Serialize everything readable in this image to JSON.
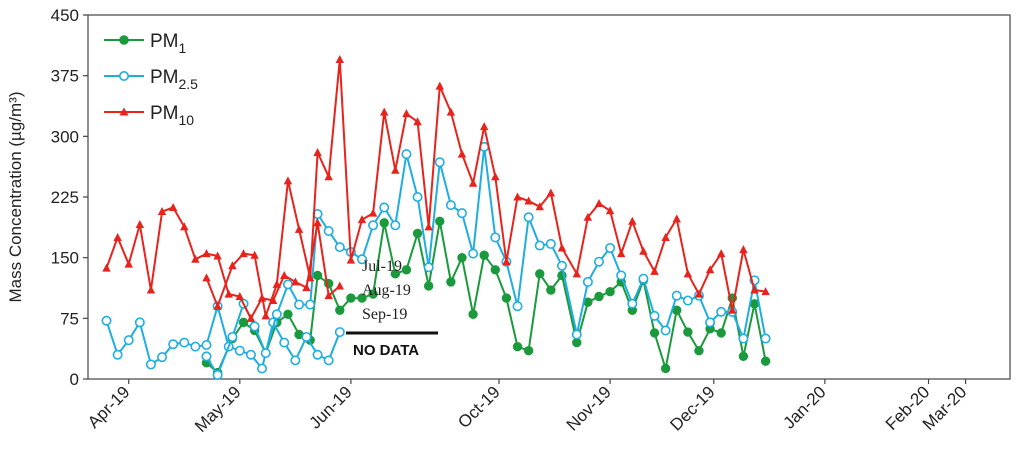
{
  "chart_data": {
    "type": "line",
    "title": "",
    "xlabel": "",
    "ylabel": "Mass Concentration (µg/m³)",
    "ylim": [
      0,
      450
    ],
    "yticks": [
      "0",
      "75",
      "150",
      "225",
      "300",
      "375",
      "450"
    ],
    "grid": false,
    "legend_position": "top-left",
    "x_domain": [
      -5.5,
      119
    ],
    "month_ticks": [
      {
        "label": "Apr-19",
        "x": 0
      },
      {
        "label": "May-19",
        "x": 15
      },
      {
        "label": "Jun-19",
        "x": 30
      },
      {
        "label": "Oct-19",
        "x": 50
      },
      {
        "label": "Nov-19",
        "x": 65
      },
      {
        "label": "Dec-19",
        "x": 79
      },
      {
        "label": "Jan-20",
        "x": 94
      },
      {
        "label": "Feb-20",
        "x": 108
      },
      {
        "label": "Mar-20",
        "x": 113
      }
    ],
    "series": [
      {
        "name": "PM",
        "sub": "1",
        "color": "#1a9a3c",
        "marker": "filled-circle",
        "segments": [
          [
            [
              10.5,
              20
            ],
            [
              12,
              8
            ],
            [
              14,
              50
            ],
            [
              15.5,
              70
            ],
            [
              17,
              60
            ],
            [
              18.5,
              32
            ],
            [
              20,
              70
            ],
            [
              21.5,
              80
            ],
            [
              23,
              55
            ],
            [
              24.5,
              48
            ],
            [
              25.5,
              128
            ],
            [
              27,
              118
            ],
            [
              28.5,
              85
            ],
            [
              30,
              100
            ],
            [
              31.5,
              100
            ],
            [
              33,
              105
            ],
            [
              34.5,
              193
            ],
            [
              36,
              130
            ],
            [
              37.5,
              135
            ],
            [
              39,
              180
            ],
            [
              40.5,
              115
            ],
            [
              42,
              195
            ],
            [
              43.5,
              120
            ],
            [
              45,
              150
            ],
            [
              46.5,
              80
            ],
            [
              48,
              153
            ],
            [
              49.5,
              135
            ],
            [
              51,
              100
            ],
            [
              52.5,
              40
            ],
            [
              54,
              35
            ],
            [
              55.5,
              130
            ],
            [
              57,
              110
            ],
            [
              58.5,
              128
            ],
            [
              60.5,
              45
            ],
            [
              62,
              95
            ],
            [
              63.5,
              102
            ],
            [
              65,
              108
            ],
            [
              66.5,
              120
            ],
            [
              68,
              85
            ],
            [
              69.5,
              122
            ],
            [
              71,
              57
            ],
            [
              72.5,
              13
            ],
            [
              74,
              85
            ],
            [
              75.5,
              58
            ],
            [
              77,
              35
            ],
            [
              78.5,
              62
            ],
            [
              80,
              57
            ],
            [
              81.5,
              100
            ],
            [
              83,
              28
            ],
            [
              84.5,
              93
            ],
            [
              86,
              22
            ]
          ]
        ]
      },
      {
        "name": "PM",
        "sub": "2.5",
        "color": "#1eaee0",
        "marker": "open-circle",
        "segments": [
          [
            [
              -3,
              72
            ],
            [
              -1.5,
              30
            ],
            [
              0,
              48
            ],
            [
              1.5,
              70
            ],
            [
              3,
              18
            ],
            [
              4.5,
              27
            ],
            [
              6,
              43
            ],
            [
              7.5,
              45
            ],
            [
              9,
              40
            ],
            [
              10.5,
              42
            ],
            [
              12,
              90
            ],
            [
              13.5,
              40
            ],
            [
              15,
              35
            ],
            [
              16.5,
              30
            ],
            [
              18,
              13
            ],
            [
              19.5,
              70
            ],
            [
              21,
              45
            ],
            [
              22.5,
              23
            ],
            [
              24,
              52
            ],
            [
              25.5,
              30
            ],
            [
              27,
              23
            ],
            [
              28.5,
              58
            ]
          ],
          [
            [
              10.5,
              28
            ],
            [
              12,
              5
            ],
            [
              14,
              52
            ],
            [
              15.5,
              93
            ],
            [
              17,
              65
            ],
            [
              18.5,
              32
            ],
            [
              20,
              80
            ],
            [
              21.5,
              117
            ],
            [
              23,
              92
            ],
            [
              24.5,
              92
            ],
            [
              25.5,
              204
            ],
            [
              27,
              183
            ],
            [
              28.5,
              163
            ],
            [
              30,
              157
            ],
            [
              31.5,
              148
            ],
            [
              33,
              190
            ],
            [
              34.5,
              212
            ],
            [
              36,
              190
            ],
            [
              37.5,
              278
            ],
            [
              39,
              225
            ],
            [
              40.5,
              138
            ],
            [
              42,
              268
            ],
            [
              43.5,
              215
            ],
            [
              45,
              205
            ],
            [
              46.5,
              155
            ],
            [
              48,
              287
            ],
            [
              49.5,
              175
            ],
            [
              51,
              145
            ],
            [
              52.5,
              90
            ],
            [
              54,
              200
            ],
            [
              55.5,
              165
            ],
            [
              57,
              167
            ],
            [
              58.5,
              140
            ],
            [
              60.5,
              55
            ],
            [
              62,
              120
            ],
            [
              63.5,
              145
            ],
            [
              65,
              162
            ],
            [
              66.5,
              128
            ],
            [
              68,
              93
            ],
            [
              69.5,
              124
            ],
            [
              71,
              78
            ],
            [
              72.5,
              60
            ],
            [
              74,
              103
            ],
            [
              75.5,
              97
            ],
            [
              77,
              103
            ],
            [
              78.5,
              70
            ],
            [
              80,
              83
            ],
            [
              81.5,
              83
            ],
            [
              83,
              50
            ],
            [
              84.5,
              122
            ],
            [
              86,
              50
            ]
          ]
        ]
      },
      {
        "name": "PM",
        "sub": "10",
        "color": "#e8231c",
        "marker": "triangle",
        "segments": [
          [
            [
              -3,
              137
            ],
            [
              -1.5,
              175
            ],
            [
              0,
              142
            ],
            [
              1.5,
              191
            ],
            [
              3,
              110
            ],
            [
              4.5,
              207
            ],
            [
              6,
              212
            ],
            [
              7.5,
              188
            ],
            [
              9,
              148
            ],
            [
              10.5,
              155
            ],
            [
              12,
              152
            ],
            [
              13.5,
              105
            ],
            [
              15,
              102
            ],
            [
              16.5,
              75
            ],
            [
              18,
              100
            ],
            [
              19.5,
              97
            ],
            [
              21,
              128
            ],
            [
              22.5,
              120
            ],
            [
              24,
              113
            ],
            [
              25.5,
              193
            ],
            [
              27,
              103
            ],
            [
              28.5,
              115
            ]
          ],
          [
            [
              10.5,
              125
            ],
            [
              12,
              90
            ],
            [
              14,
              140
            ],
            [
              15.5,
              155
            ],
            [
              17,
              153
            ],
            [
              18.5,
              78
            ],
            [
              20,
              117
            ],
            [
              21.5,
              245
            ],
            [
              23,
              185
            ],
            [
              24.5,
              125
            ],
            [
              25.5,
              280
            ],
            [
              27,
              250
            ],
            [
              28.5,
              395
            ],
            [
              30,
              147
            ],
            [
              31.5,
              197
            ],
            [
              33,
              205
            ],
            [
              34.5,
              330
            ],
            [
              36,
              258
            ],
            [
              37.5,
              328
            ],
            [
              39,
              318
            ],
            [
              40.5,
              188
            ],
            [
              42,
              362
            ],
            [
              43.5,
              330
            ],
            [
              45,
              278
            ],
            [
              46.5,
              242
            ],
            [
              48,
              312
            ],
            [
              49.5,
              250
            ],
            [
              51,
              145
            ],
            [
              52.5,
              225
            ],
            [
              54,
              220
            ],
            [
              55.5,
              213
            ],
            [
              57,
              230
            ],
            [
              58.5,
              162
            ],
            [
              60.5,
              130
            ],
            [
              62,
              200
            ],
            [
              63.5,
              217
            ],
            [
              65,
              208
            ],
            [
              66.5,
              155
            ],
            [
              68,
              195
            ],
            [
              69.5,
              158
            ],
            [
              71,
              133
            ],
            [
              72.5,
              175
            ],
            [
              74,
              198
            ],
            [
              75.5,
              130
            ],
            [
              77,
              105
            ],
            [
              78.5,
              135
            ],
            [
              80,
              155
            ],
            [
              81.5,
              85
            ],
            [
              83,
              160
            ],
            [
              84.5,
              110
            ],
            [
              86,
              108
            ]
          ]
        ]
      }
    ],
    "annotations": [
      "Jul-19",
      "Aug-19",
      "Sep-19",
      "NO DATA"
    ]
  }
}
